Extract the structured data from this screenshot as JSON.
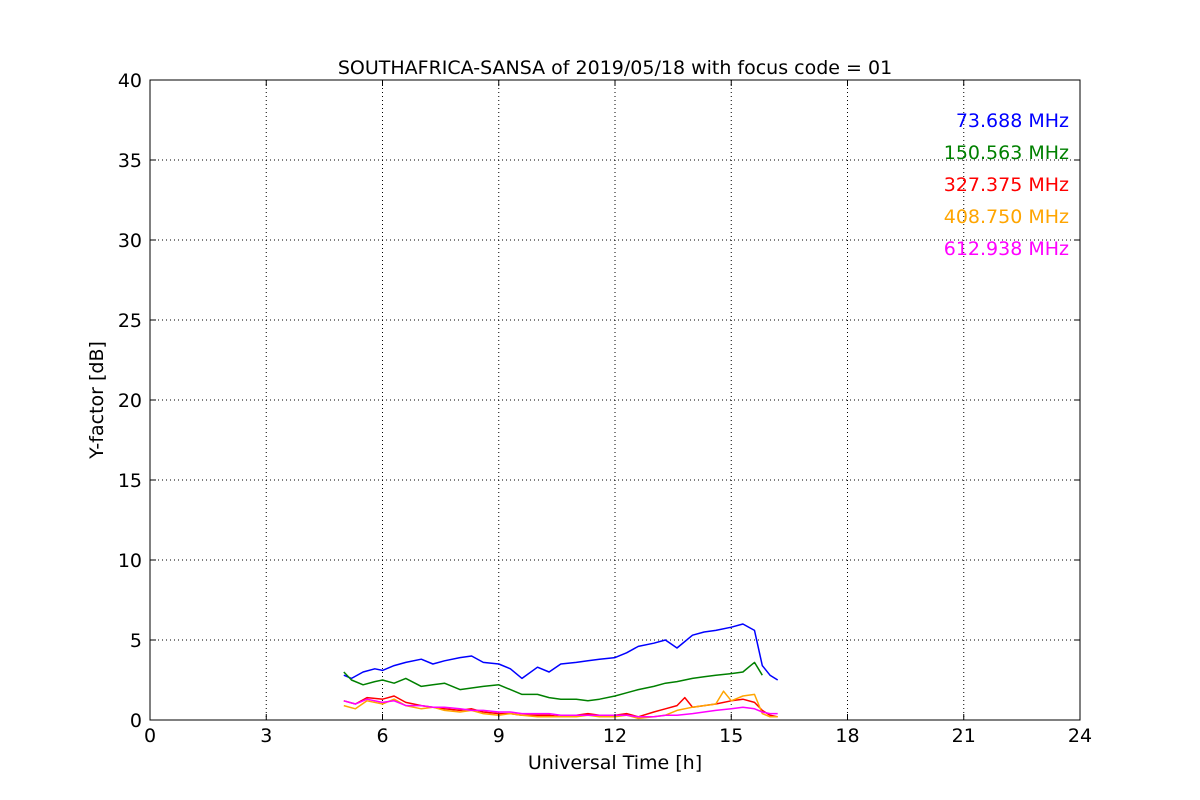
{
  "chart_data": {
    "type": "line",
    "title": "SOUTHAFRICA-SANSA of 2019/05/18 with focus code = 01",
    "xlabel": "Universal Time [h]",
    "ylabel": "Y-factor [dB]",
    "xlim": [
      0,
      24
    ],
    "ylim": [
      0,
      40
    ],
    "xticks": [
      0,
      3,
      6,
      9,
      12,
      15,
      18,
      21,
      24
    ],
    "yticks": [
      0,
      5,
      10,
      15,
      20,
      25,
      30,
      35,
      40
    ],
    "grid": true,
    "legend_placement": "top-right",
    "series": [
      {
        "name": "73.688 MHz",
        "color": "#0000ff",
        "x": [
          5.0,
          5.2,
          5.5,
          5.8,
          6.0,
          6.3,
          6.6,
          7.0,
          7.3,
          7.6,
          8.0,
          8.3,
          8.6,
          9.0,
          9.3,
          9.6,
          10.0,
          10.3,
          10.6,
          11.0,
          11.3,
          11.6,
          12.0,
          12.3,
          12.6,
          13.0,
          13.3,
          13.6,
          14.0,
          14.3,
          14.6,
          15.0,
          15.3,
          15.6,
          15.8,
          16.0,
          16.2
        ],
        "y": [
          2.8,
          2.6,
          3.0,
          3.2,
          3.1,
          3.4,
          3.6,
          3.8,
          3.5,
          3.7,
          3.9,
          4.0,
          3.6,
          3.5,
          3.2,
          2.6,
          3.3,
          3.0,
          3.5,
          3.6,
          3.7,
          3.8,
          3.9,
          4.2,
          4.6,
          4.8,
          5.0,
          4.5,
          5.3,
          5.5,
          5.6,
          5.8,
          6.0,
          5.6,
          3.4,
          2.8,
          2.5
        ]
      },
      {
        "name": "150.563 MHz",
        "color": "#008000",
        "x": [
          5.0,
          5.2,
          5.5,
          5.8,
          6.0,
          6.3,
          6.6,
          7.0,
          7.3,
          7.6,
          8.0,
          8.3,
          8.6,
          9.0,
          9.3,
          9.6,
          10.0,
          10.3,
          10.6,
          11.0,
          11.3,
          11.6,
          12.0,
          12.3,
          12.6,
          13.0,
          13.3,
          13.6,
          14.0,
          14.3,
          14.6,
          15.0,
          15.3,
          15.5,
          15.6,
          15.8
        ],
        "y": [
          3.0,
          2.5,
          2.2,
          2.4,
          2.5,
          2.3,
          2.6,
          2.1,
          2.2,
          2.3,
          1.9,
          2.0,
          2.1,
          2.2,
          1.9,
          1.6,
          1.6,
          1.4,
          1.3,
          1.3,
          1.2,
          1.3,
          1.5,
          1.7,
          1.9,
          2.1,
          2.3,
          2.4,
          2.6,
          2.7,
          2.8,
          2.9,
          3.0,
          3.4,
          3.6,
          2.8
        ]
      },
      {
        "name": "327.375 MHz",
        "color": "#ff0000",
        "x": [
          5.0,
          5.3,
          5.6,
          6.0,
          6.3,
          6.6,
          7.0,
          7.3,
          7.6,
          8.0,
          8.3,
          8.6,
          9.0,
          9.3,
          9.6,
          10.0,
          10.3,
          10.6,
          11.0,
          11.3,
          11.6,
          12.0,
          12.3,
          12.6,
          13.0,
          13.3,
          13.6,
          13.8,
          14.0,
          14.3,
          14.6,
          15.0,
          15.3,
          15.6,
          15.8,
          16.0,
          16.2
        ],
        "y": [
          1.2,
          1.0,
          1.4,
          1.3,
          1.5,
          1.1,
          0.9,
          0.8,
          0.7,
          0.6,
          0.7,
          0.5,
          0.4,
          0.4,
          0.3,
          0.3,
          0.3,
          0.2,
          0.3,
          0.4,
          0.3,
          0.3,
          0.4,
          0.2,
          0.5,
          0.7,
          0.9,
          1.4,
          0.8,
          0.9,
          1.0,
          1.2,
          1.3,
          1.1,
          0.6,
          0.3,
          0.2
        ]
      },
      {
        "name": "408.750 MHz",
        "color": "#ffa500",
        "x": [
          5.0,
          5.3,
          5.6,
          6.0,
          6.3,
          6.6,
          7.0,
          7.3,
          7.6,
          8.0,
          8.3,
          8.6,
          9.0,
          9.3,
          9.6,
          10.0,
          10.3,
          10.6,
          11.0,
          11.3,
          11.6,
          12.0,
          12.3,
          12.6,
          13.0,
          13.3,
          13.6,
          14.0,
          14.3,
          14.6,
          14.8,
          15.0,
          15.3,
          15.6,
          15.8,
          16.0,
          16.2
        ],
        "y": [
          0.9,
          0.7,
          1.2,
          1.0,
          1.3,
          0.9,
          0.7,
          0.8,
          0.6,
          0.5,
          0.6,
          0.4,
          0.3,
          0.4,
          0.3,
          0.2,
          0.2,
          0.2,
          0.2,
          0.3,
          0.2,
          0.2,
          0.3,
          0.1,
          0.2,
          0.3,
          0.6,
          0.8,
          0.9,
          1.0,
          1.8,
          1.2,
          1.5,
          1.6,
          0.4,
          0.2,
          0.2
        ]
      },
      {
        "name": "612.938 MHz",
        "color": "#ff00ff",
        "x": [
          5.0,
          5.3,
          5.6,
          6.0,
          6.3,
          6.6,
          7.0,
          7.3,
          7.6,
          8.0,
          8.3,
          8.6,
          9.0,
          9.3,
          9.6,
          10.0,
          10.3,
          10.6,
          11.0,
          11.3,
          11.6,
          12.0,
          12.3,
          12.6,
          13.0,
          13.3,
          13.6,
          14.0,
          14.3,
          14.6,
          15.0,
          15.3,
          15.6,
          15.8,
          16.0,
          16.2
        ],
        "y": [
          1.2,
          1.0,
          1.3,
          1.1,
          1.2,
          0.9,
          0.9,
          0.8,
          0.8,
          0.7,
          0.6,
          0.6,
          0.5,
          0.5,
          0.4,
          0.4,
          0.4,
          0.3,
          0.3,
          0.3,
          0.3,
          0.3,
          0.3,
          0.2,
          0.2,
          0.3,
          0.3,
          0.4,
          0.5,
          0.6,
          0.7,
          0.8,
          0.7,
          0.5,
          0.4,
          0.4
        ]
      }
    ]
  }
}
